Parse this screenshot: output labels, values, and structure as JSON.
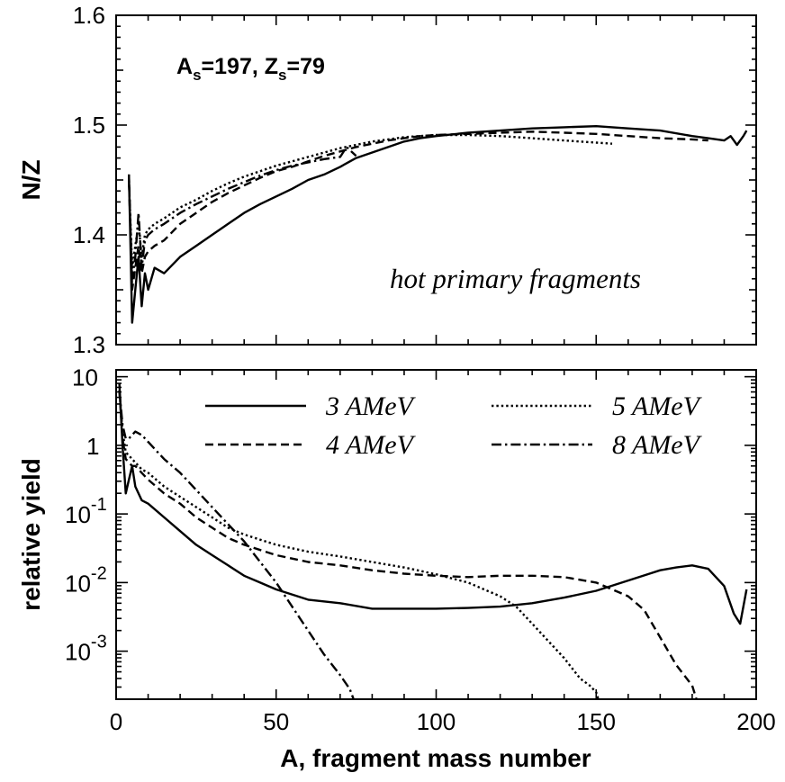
{
  "chart_data": [
    {
      "type": "line",
      "panel": "top",
      "title": "",
      "xlabel": "",
      "ylabel": "N/Z",
      "xlim": [
        0,
        200
      ],
      "ylim": [
        1.3,
        1.6
      ],
      "yticks": [
        1.3,
        1.4,
        1.5,
        1.6
      ],
      "ytick_labels": [
        "1.3",
        "1.4",
        "1.5",
        "1.6"
      ],
      "annotations": {
        "system_A": "A",
        "system_A_sub": "s",
        "system_A_val": "=197, Z",
        "system_Z_sub": "s",
        "system_Z_val": "=79",
        "note": "hot primary fragments"
      },
      "grid": false,
      "series": [
        {
          "name": "3 AMeV",
          "dash": "solid",
          "x": [
            4,
            5,
            6,
            7,
            8,
            9,
            10,
            12,
            15,
            20,
            25,
            30,
            35,
            40,
            45,
            50,
            55,
            60,
            65,
            70,
            75,
            80,
            85,
            90,
            95,
            100,
            110,
            120,
            130,
            140,
            150,
            160,
            170,
            180,
            185,
            190,
            192,
            194,
            196,
            197
          ],
          "y": [
            1.455,
            1.32,
            1.35,
            1.38,
            1.335,
            1.365,
            1.35,
            1.37,
            1.365,
            1.38,
            1.39,
            1.4,
            1.41,
            1.42,
            1.428,
            1.435,
            1.442,
            1.45,
            1.455,
            1.462,
            1.47,
            1.475,
            1.48,
            1.485,
            1.488,
            1.49,
            1.493,
            1.495,
            1.497,
            1.498,
            1.499,
            1.497,
            1.495,
            1.49,
            1.488,
            1.486,
            1.49,
            1.482,
            1.49,
            1.495
          ]
        },
        {
          "name": "4 AMeV",
          "dash": "dash",
          "x": [
            4,
            5,
            6,
            7,
            8,
            9,
            10,
            12,
            15,
            20,
            25,
            30,
            35,
            40,
            45,
            50,
            55,
            60,
            65,
            70,
            75,
            80,
            85,
            90,
            95,
            100,
            110,
            120,
            130,
            140,
            150,
            160,
            170,
            180,
            185
          ],
          "y": [
            1.455,
            1.35,
            1.37,
            1.39,
            1.365,
            1.38,
            1.385,
            1.39,
            1.395,
            1.41,
            1.42,
            1.43,
            1.438,
            1.445,
            1.452,
            1.458,
            1.462,
            1.467,
            1.472,
            1.476,
            1.48,
            1.483,
            1.486,
            1.488,
            1.49,
            1.491,
            1.492,
            1.493,
            1.494,
            1.493,
            1.492,
            1.49,
            1.488,
            1.487,
            1.486
          ]
        },
        {
          "name": "5 AMeV",
          "dash": "dot",
          "x": [
            4,
            5,
            6,
            7,
            8,
            9,
            10,
            12,
            15,
            20,
            25,
            30,
            35,
            40,
            45,
            50,
            55,
            60,
            65,
            70,
            75,
            80,
            85,
            90,
            95,
            100,
            110,
            120,
            130,
            140,
            150,
            155
          ],
          "y": [
            1.45,
            1.37,
            1.39,
            1.41,
            1.38,
            1.4,
            1.405,
            1.41,
            1.415,
            1.425,
            1.432,
            1.44,
            1.447,
            1.453,
            1.458,
            1.463,
            1.467,
            1.471,
            1.475,
            1.479,
            1.482,
            1.485,
            1.487,
            1.489,
            1.49,
            1.491,
            1.491,
            1.49,
            1.488,
            1.486,
            1.484,
            1.483
          ]
        },
        {
          "name": "8 AMeV",
          "dash": "dashdot",
          "x": [
            4,
            5,
            6,
            7,
            8,
            9,
            10,
            12,
            15,
            20,
            25,
            30,
            35,
            40,
            45,
            50,
            55,
            60,
            65,
            70,
            72,
            75
          ],
          "y": [
            1.45,
            1.36,
            1.38,
            1.42,
            1.37,
            1.395,
            1.4,
            1.405,
            1.41,
            1.42,
            1.428,
            1.435,
            1.442,
            1.448,
            1.454,
            1.459,
            1.463,
            1.466,
            1.469,
            1.471,
            1.48,
            1.472
          ]
        }
      ]
    },
    {
      "type": "line",
      "panel": "bottom",
      "title": "",
      "xlabel": "A, fragment mass number",
      "ylabel": "relative yield",
      "xlim": [
        0,
        200
      ],
      "ylim_log10": [
        -3.7,
        1.1
      ],
      "yscale": "log",
      "xticks": [
        0,
        50,
        100,
        150,
        200
      ],
      "xtick_labels": [
        "0",
        "50",
        "100",
        "150",
        "200"
      ],
      "ytick_labels": [
        {
          "base": "10",
          "exp": ""
        },
        {
          "base": "1",
          "exp": ""
        },
        {
          "base": "10",
          "exp": "-1"
        },
        {
          "base": "10",
          "exp": "-2"
        },
        {
          "base": "10",
          "exp": "-3"
        }
      ],
      "ytick_values_log10": [
        1,
        0,
        -1,
        -2,
        -3
      ],
      "legend_position": "top-right",
      "grid": false,
      "series": [
        {
          "name": "3 AMeV",
          "dash": "solid",
          "x": [
            1,
            2,
            3,
            4,
            5,
            6,
            8,
            10,
            15,
            20,
            25,
            30,
            35,
            40,
            45,
            50,
            60,
            70,
            80,
            90,
            100,
            110,
            120,
            130,
            140,
            150,
            160,
            170,
            175,
            180,
            185,
            190,
            193,
            195,
            197
          ],
          "y_log10": [
            0.9,
            0.0,
            -0.7,
            -0.5,
            -0.3,
            -0.6,
            -0.8,
            -0.85,
            -1.05,
            -1.25,
            -1.45,
            -1.6,
            -1.75,
            -1.9,
            -2.0,
            -2.1,
            -2.25,
            -2.3,
            -2.38,
            -2.38,
            -2.38,
            -2.37,
            -2.35,
            -2.3,
            -2.22,
            -2.12,
            -1.97,
            -1.82,
            -1.78,
            -1.75,
            -1.8,
            -2.05,
            -2.45,
            -2.6,
            -2.1
          ]
        },
        {
          "name": "4 AMeV",
          "dash": "dash",
          "x": [
            1,
            2,
            3,
            4,
            5,
            6,
            8,
            10,
            15,
            20,
            25,
            30,
            35,
            40,
            50,
            60,
            70,
            80,
            90,
            100,
            110,
            120,
            130,
            140,
            150,
            160,
            165,
            170,
            175,
            180,
            182
          ],
          "y_log10": [
            0.8,
            0.1,
            -0.2,
            -0.25,
            -0.3,
            -0.3,
            -0.4,
            -0.5,
            -0.7,
            -0.85,
            -1.05,
            -1.2,
            -1.35,
            -1.45,
            -1.6,
            -1.7,
            -1.75,
            -1.82,
            -1.87,
            -1.9,
            -1.92,
            -1.9,
            -1.9,
            -1.92,
            -2.0,
            -2.2,
            -2.4,
            -2.8,
            -3.2,
            -3.5,
            -3.8
          ]
        },
        {
          "name": "5 AMeV",
          "dash": "dot",
          "x": [
            1,
            2,
            3,
            4,
            5,
            6,
            8,
            10,
            15,
            20,
            25,
            30,
            35,
            40,
            50,
            60,
            70,
            80,
            90,
            100,
            110,
            120,
            125,
            130,
            135,
            140,
            145,
            148,
            150,
            152
          ],
          "y_log10": [
            0.8,
            0.2,
            -0.1,
            -0.15,
            -0.2,
            -0.25,
            -0.35,
            -0.4,
            -0.6,
            -0.75,
            -0.9,
            -1.05,
            -1.2,
            -1.3,
            -1.45,
            -1.55,
            -1.62,
            -1.7,
            -1.78,
            -1.88,
            -2.0,
            -2.2,
            -2.35,
            -2.6,
            -2.85,
            -3.1,
            -3.4,
            -3.5,
            -3.6,
            -3.9
          ]
        },
        {
          "name": "8 AMeV",
          "dash": "dashdot",
          "x": [
            1,
            2,
            3,
            4,
            5,
            6,
            8,
            10,
            15,
            20,
            25,
            30,
            35,
            40,
            45,
            50,
            55,
            60,
            65,
            70,
            73,
            75
          ],
          "y_log10": [
            0.8,
            0.3,
            0.1,
            0.1,
            0.15,
            0.2,
            0.15,
            0.05,
            -0.2,
            -0.4,
            -0.65,
            -0.9,
            -1.15,
            -1.4,
            -1.7,
            -2.0,
            -2.35,
            -2.7,
            -3.05,
            -3.35,
            -3.55,
            -3.8
          ]
        }
      ]
    }
  ]
}
